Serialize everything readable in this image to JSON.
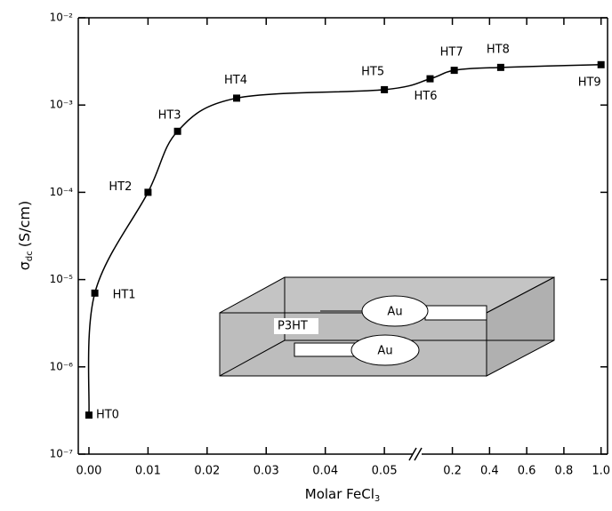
{
  "chart_data": {
    "type": "scatter",
    "xlabel": {
      "text": "Molar FeCl",
      "subscript": "3"
    },
    "ylabel": {
      "symbol": "σ",
      "subscript": "dc",
      "unit": "(S/cm)"
    },
    "x": [
      0,
      0.001,
      0.01,
      0.015,
      0.025,
      0.05,
      0.08,
      0.21,
      0.46,
      1.0
    ],
    "values": [
      2.8e-07,
      7e-06,
      0.0001,
      0.0005,
      0.0012,
      0.0015,
      0.002,
      0.0025,
      0.0027,
      0.0029
    ],
    "point_labels": [
      "HT0",
      "HT1",
      "HT2",
      "HT3",
      "HT4",
      "HT5",
      "HT6",
      "HT7",
      "HT8",
      "HT9"
    ],
    "color": "#000000",
    "fit_line": true,
    "log_y": true,
    "xlim": [
      [
        -0.0018,
        0.0551
      ],
      [
        0.025,
        1.035
      ]
    ],
    "ylim": [
      1e-07,
      0.01
    ],
    "xticks": [
      {
        "value": 0,
        "label": "0.00"
      },
      {
        "value": 0.01,
        "label": "0.01"
      },
      {
        "value": 0.02,
        "label": "0.02"
      },
      {
        "value": 0.03,
        "label": "0.03"
      },
      {
        "value": 0.04,
        "label": "0.04"
      },
      {
        "value": 0.05,
        "label": "0.05"
      },
      0.2,
      0.4,
      0.6,
      0.8,
      {
        "value": 1.0,
        "label": "1.0"
      }
    ],
    "yticks": [
      {
        "value": 1e-07,
        "label": "10⁻⁷"
      },
      {
        "value": 1e-06,
        "label": "10⁻⁶"
      },
      {
        "value": 1e-05,
        "label": "10⁻⁵"
      },
      {
        "value": 0.0001,
        "label": "10⁻⁴"
      },
      {
        "value": 0.001,
        "label": "10⁻³"
      },
      {
        "value": 0.01,
        "label": "10⁻²"
      }
    ]
  },
  "inset": {
    "electrode_top": "Au",
    "electrode_bottom": "Au",
    "film": "P3HT"
  }
}
